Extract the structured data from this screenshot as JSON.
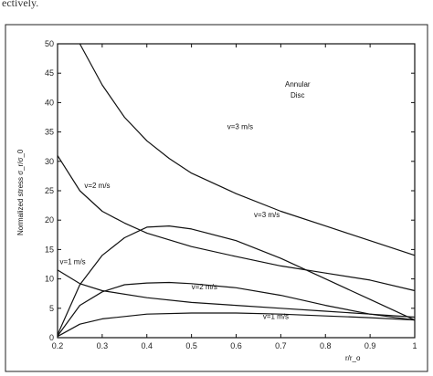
{
  "page": {
    "top_caption": "ectively."
  },
  "chart_data": {
    "type": "line",
    "title": "",
    "xlabel": "r/r_o",
    "ylabel": "Normalized stress  σ_r/σ_0",
    "xlim": [
      0.2,
      1.0
    ],
    "ylim": [
      0,
      50
    ],
    "xticks": [
      0.2,
      0.3,
      0.4,
      0.5,
      0.6,
      0.7,
      0.8,
      0.9,
      1
    ],
    "xtick_labels": [
      "0.2",
      "0.3",
      "0.4",
      "0.5",
      "0.6",
      "0.7",
      "0.8",
      "0.9",
      "1"
    ],
    "yticks": [
      0,
      5,
      10,
      15,
      20,
      25,
      30,
      35,
      40,
      45,
      50
    ],
    "ytick_labels": [
      "0",
      "5",
      "10",
      "15",
      "20",
      "25",
      "30",
      "35",
      "40",
      "45",
      "50"
    ],
    "grid": false,
    "legend": "none",
    "region_label": [
      "Annular",
      "Disc"
    ],
    "series": [
      {
        "x": [
          0.25,
          0.3,
          0.35,
          0.4,
          0.45,
          0.5,
          0.6,
          0.7,
          0.8,
          0.9,
          1.0
        ],
        "values": [
          50,
          43,
          37.5,
          33.5,
          30.5,
          28,
          24.5,
          21.5,
          19,
          16.5,
          14
        ]
      },
      {
        "x": [
          0.2,
          0.25,
          0.3,
          0.35,
          0.4,
          0.5,
          0.6,
          0.7,
          0.8,
          0.9,
          1.0
        ],
        "values": [
          31,
          25,
          21.5,
          19.5,
          17.8,
          15.5,
          13.8,
          12.2,
          11,
          9.8,
          8
        ]
      },
      {
        "x": [
          0.2,
          0.25,
          0.3,
          0.35,
          0.4,
          0.45,
          0.5,
          0.6,
          0.7,
          0.8,
          0.9,
          1.0
        ],
        "values": [
          0.5,
          9,
          14,
          17,
          18.8,
          19,
          18.5,
          16.5,
          13.5,
          10,
          6.5,
          3
        ]
      },
      {
        "x": [
          0.2,
          0.25,
          0.3,
          0.4,
          0.5,
          0.6,
          0.7,
          0.8,
          0.9,
          1.0
        ],
        "values": [
          11.5,
          9.2,
          8,
          6.8,
          6,
          5.5,
          5,
          4.5,
          4,
          3.5
        ]
      },
      {
        "x": [
          0.2,
          0.25,
          0.3,
          0.35,
          0.4,
          0.45,
          0.5,
          0.6,
          0.7,
          0.8,
          0.9,
          1.0
        ],
        "values": [
          0.3,
          5.5,
          7.8,
          9,
          9.3,
          9.4,
          9.2,
          8.5,
          7.2,
          5.5,
          4,
          3
        ]
      },
      {
        "x": [
          0.2,
          0.25,
          0.3,
          0.4,
          0.5,
          0.6,
          0.7,
          0.8,
          0.9,
          1.0
        ],
        "values": [
          0.2,
          2.3,
          3.2,
          4,
          4.2,
          4.2,
          4.0,
          3.7,
          3.4,
          3
        ]
      }
    ],
    "annotations": [
      {
        "text": "v=3 m/s",
        "x": 0.58,
        "y": 35.5
      },
      {
        "text": "v=2 m/s",
        "x": 0.26,
        "y": 25.5
      },
      {
        "text": "v=3 m/s",
        "x": 0.64,
        "y": 20.5
      },
      {
        "text": "v=1 m/s",
        "x": 0.205,
        "y": 12.5
      },
      {
        "text": "v=2 m/s",
        "x": 0.5,
        "y": 8.2
      },
      {
        "text": "v=1 m/s",
        "x": 0.66,
        "y": 3.2
      }
    ]
  }
}
